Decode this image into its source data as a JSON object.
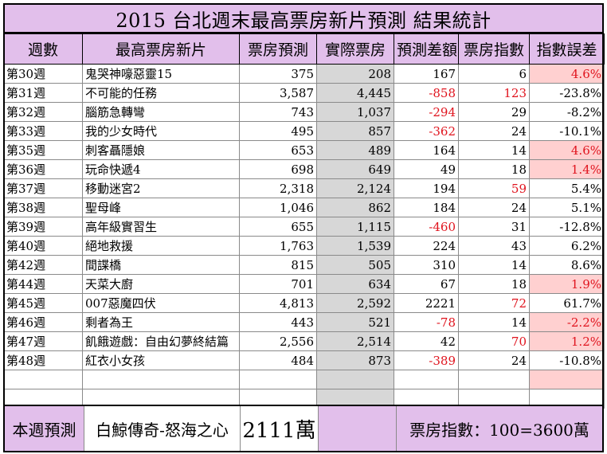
{
  "title": "2015 台北週末最高票房新片預測 結果統計",
  "headers": [
    "週數",
    "最高票房新片",
    "票房預測",
    "實際票房",
    "預測差額",
    "票房指數",
    "指數誤差"
  ],
  "rows": [
    {
      "week": "第30週",
      "film": "鬼哭神嚎惡靈15",
      "forecast": "375",
      "actual": "208",
      "diff": "167",
      "diff_red": false,
      "index": "6",
      "index_red": false,
      "err": "4.6%",
      "err_red": true,
      "err_pink": true
    },
    {
      "week": "第31週",
      "film": "不可能的任務",
      "forecast": "3,587",
      "actual": "4,445",
      "diff": "-858",
      "diff_red": true,
      "index": "123",
      "index_red": true,
      "err": "-23.8%",
      "err_red": false,
      "err_pink": false
    },
    {
      "week": "第32週",
      "film": "腦筋急轉彎",
      "forecast": "743",
      "actual": "1,037",
      "diff": "-294",
      "diff_red": true,
      "index": "29",
      "index_red": false,
      "err": "-8.2%",
      "err_red": false,
      "err_pink": false
    },
    {
      "week": "第33週",
      "film": "我的少女時代",
      "forecast": "495",
      "actual": "857",
      "diff": "-362",
      "diff_red": true,
      "index": "24",
      "index_red": false,
      "err": "-10.1%",
      "err_red": false,
      "err_pink": false
    },
    {
      "week": "第35週",
      "film": "刺客聶隱娘",
      "forecast": "653",
      "actual": "489",
      "diff": "164",
      "diff_red": false,
      "index": "14",
      "index_red": false,
      "err": "4.6%",
      "err_red": true,
      "err_pink": true
    },
    {
      "week": "第36週",
      "film": "玩命快遞4",
      "forecast": "698",
      "actual": "649",
      "diff": "49",
      "diff_red": false,
      "index": "18",
      "index_red": false,
      "err": "1.4%",
      "err_red": true,
      "err_pink": true
    },
    {
      "week": "第37週",
      "film": "移動迷宮2",
      "forecast": "2,318",
      "actual": "2,124",
      "diff": "194",
      "diff_red": false,
      "index": "59",
      "index_red": true,
      "err": "5.4%",
      "err_red": false,
      "err_pink": false
    },
    {
      "week": "第38週",
      "film": "聖母峰",
      "forecast": "1,046",
      "actual": "862",
      "diff": "184",
      "diff_red": false,
      "index": "24",
      "index_red": false,
      "err": "5.1%",
      "err_red": false,
      "err_pink": false
    },
    {
      "week": "第39週",
      "film": "高年級實習生",
      "forecast": "655",
      "actual": "1,115",
      "diff": "-460",
      "diff_red": true,
      "index": "31",
      "index_red": false,
      "err": "-12.8%",
      "err_red": false,
      "err_pink": false
    },
    {
      "week": "第40週",
      "film": "絕地救援",
      "forecast": "1,763",
      "actual": "1,539",
      "diff": "224",
      "diff_red": false,
      "index": "43",
      "index_red": false,
      "err": "6.2%",
      "err_red": false,
      "err_pink": false
    },
    {
      "week": "第42週",
      "film": "間諜橋",
      "forecast": "815",
      "actual": "505",
      "diff": "310",
      "diff_red": false,
      "index": "14",
      "index_red": false,
      "err": "8.6%",
      "err_red": false,
      "err_pink": false
    },
    {
      "week": "第44週",
      "film": "天菜大廚",
      "forecast": "701",
      "actual": "634",
      "diff": "67",
      "diff_red": false,
      "index": "18",
      "index_red": false,
      "err": "1.9%",
      "err_red": true,
      "err_pink": true
    },
    {
      "week": "第45週",
      "film": "007惡魔四伏",
      "forecast": "4,813",
      "actual": "2,592",
      "diff": "2221",
      "diff_red": false,
      "index": "72",
      "index_red": true,
      "err": "61.7%",
      "err_red": false,
      "err_pink": false
    },
    {
      "week": "第46週",
      "film": "剩者為王",
      "forecast": "443",
      "actual": "521",
      "diff": "-78",
      "diff_red": true,
      "index": "14",
      "index_red": false,
      "err": "-2.2%",
      "err_red": true,
      "err_pink": true
    },
    {
      "week": "第47週",
      "film": "飢餓遊戲：自由幻夢終結篇",
      "forecast": "2,556",
      "actual": "2,514",
      "diff": "42",
      "diff_red": false,
      "index": "70",
      "index_red": true,
      "err": "1.2%",
      "err_red": true,
      "err_pink": true
    },
    {
      "week": "第48週",
      "film": "紅衣小女孩",
      "forecast": "484",
      "actual": "873",
      "diff": "-389",
      "diff_red": true,
      "index": "24",
      "index_red": false,
      "err": "-10.8%",
      "err_red": false,
      "err_pink": false
    }
  ],
  "blank_rows": [
    {
      "err_pink": true
    },
    {
      "err_pink": false
    }
  ],
  "footer": {
    "label": "本週預測",
    "film": "白鯨傳奇-怒海之心",
    "forecast": "2111萬",
    "index_note": "票房指數：100=3600萬"
  },
  "colors": {
    "header_bg": "#e2bfeb",
    "actual_col_bg": "#d7d7d7",
    "highlight_bg": "#ffd0d0",
    "negative_text": "#e0141e"
  }
}
